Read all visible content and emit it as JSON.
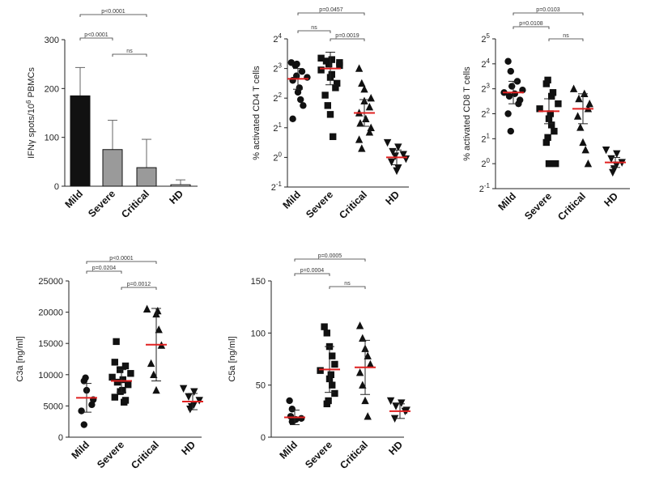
{
  "chart_data": [
    {
      "type": "bar",
      "panel": "ifn",
      "ylabel_pre": "IFNγ spots/10",
      "ylabel_sup": "6",
      "ylabel_post": " PBMCs",
      "ylim": [
        0,
        300
      ],
      "yticks": [
        "0",
        "100",
        "200",
        "300"
      ],
      "categories": [
        "Mild",
        "Severe",
        "Critical",
        "HD"
      ],
      "values": [
        185,
        75,
        38,
        3
      ],
      "errors": [
        58,
        60,
        58,
        10
      ],
      "colors": [
        "#111111",
        "#9a9a9a",
        "#9a9a9a",
        "#ffffff"
      ],
      "comparisons": [
        {
          "from": 0,
          "to": 1,
          "label": "p<0.0001"
        },
        {
          "from": 1,
          "to": 2,
          "label": "ns"
        },
        {
          "from": 0,
          "to": 2,
          "label": "p<0.0001"
        }
      ]
    },
    {
      "type": "scatter",
      "panel": "cd4",
      "ylabel": "% activated CD4 T cells",
      "scale": "log2",
      "ylim_exp": [
        -1,
        4
      ],
      "ytick_exps": [
        "-1",
        "0",
        "1",
        "2",
        "3",
        "4"
      ],
      "categories": [
        "Mild",
        "Severe",
        "Critical",
        "HD"
      ],
      "markers": [
        "circle",
        "square",
        "triangle",
        "triangle-down"
      ],
      "means": [
        2.65,
        3.0,
        1.5,
        0.0
      ],
      "sds": [
        0.35,
        0.55,
        0.45,
        0.25
      ],
      "points": [
        [
          3.15,
          3.1,
          2.9,
          2.75,
          2.7,
          2.6,
          2.35,
          2.2,
          1.95,
          1.75,
          1.3,
          3.2
        ],
        [
          3.35,
          3.3,
          3.25,
          3.15,
          3.1,
          2.95,
          2.8,
          2.7,
          2.5,
          2.35,
          2.1,
          1.75,
          1.45,
          0.7,
          3.2
        ],
        [
          3.0,
          2.5,
          2.3,
          2.0,
          1.7,
          1.5,
          1.3,
          1.15,
          1.0,
          0.85,
          0.6,
          0.3,
          1.9
        ],
        [
          0.5,
          0.35,
          0.2,
          0.05,
          -0.05,
          -0.15,
          -0.35,
          -0.45,
          0.1
        ]
      ],
      "comparisons": [
        {
          "from": 0,
          "to": 1,
          "label": "ns"
        },
        {
          "from": 1,
          "to": 2,
          "label": "p=0.0019"
        },
        {
          "from": 0,
          "to": 2,
          "label": "p=0.0457"
        }
      ]
    },
    {
      "type": "scatter",
      "panel": "cd8",
      "ylabel": "% activated CD8 T cells",
      "scale": "log2",
      "ylim_exp": [
        -1,
        5
      ],
      "ytick_exps": [
        "-1",
        "0",
        "1",
        "2",
        "3",
        "4",
        "5"
      ],
      "categories": [
        "Mild",
        "Severe",
        "Critical",
        "HD"
      ],
      "markers": [
        "circle",
        "square",
        "triangle",
        "triangle-down"
      ],
      "means": [
        2.85,
        2.1,
        2.2,
        0.05
      ],
      "sds": [
        0.45,
        0.5,
        0.6,
        0.2
      ],
      "points": [
        [
          4.1,
          3.7,
          3.3,
          3.1,
          2.95,
          2.85,
          2.8,
          2.7,
          2.55,
          2.4,
          2.0,
          1.3
        ],
        [
          3.35,
          3.2,
          2.85,
          2.7,
          2.4,
          2.2,
          2.0,
          1.8,
          1.55,
          1.3,
          1.05,
          0.85,
          0.0,
          0.0
        ],
        [
          3.0,
          2.8,
          2.6,
          2.4,
          2.2,
          1.9,
          1.45,
          0.85,
          0.55,
          0.0
        ],
        [
          0.55,
          0.4,
          0.2,
          0.05,
          -0.05,
          -0.2,
          -0.35
        ]
      ],
      "comparisons": [
        {
          "from": 0,
          "to": 1,
          "label": "p=0.0108"
        },
        {
          "from": 1,
          "to": 2,
          "label": "ns"
        },
        {
          "from": 0,
          "to": 2,
          "label": "p=0.0103"
        }
      ]
    },
    {
      "type": "scatter",
      "panel": "c3a",
      "ylabel": "C3a [ng/ml]",
      "scale": "linear",
      "ylim": [
        0,
        25000
      ],
      "yticks": [
        "0",
        "5000",
        "10000",
        "15000",
        "20000",
        "25000"
      ],
      "categories": [
        "Mild",
        "Severe",
        "Critical",
        "HD"
      ],
      "markers": [
        "circle",
        "square",
        "triangle",
        "triangle-down"
      ],
      "means": [
        6300,
        9000,
        14800,
        5700
      ],
      "sds": [
        2300,
        1800,
        5800,
        1300
      ],
      "points": [
        [
          9500,
          9000,
          7500,
          6000,
          5200,
          4200,
          2000
        ],
        [
          15300,
          12000,
          11400,
          10800,
          10200,
          9600,
          9200,
          8800,
          8400,
          7500,
          7300,
          6400,
          5900,
          5600
        ],
        [
          20500,
          20200,
          19700,
          17200,
          14700,
          11800,
          10000,
          7500
        ],
        [
          7800,
          7300,
          6500,
          5900,
          5200,
          4900,
          4500
        ]
      ],
      "comparisons": [
        {
          "from": 0,
          "to": 1,
          "label": "p=0.0204"
        },
        {
          "from": 1,
          "to": 2,
          "label": "p=0.0012"
        },
        {
          "from": 0,
          "to": 2,
          "label": "p<0.0001"
        }
      ]
    },
    {
      "type": "scatter",
      "panel": "c5a",
      "ylabel": "C5a [ng/ml]",
      "scale": "linear",
      "ylim": [
        0,
        150
      ],
      "yticks": [
        "0",
        "50",
        "100",
        "150"
      ],
      "categories": [
        "Mild",
        "Severe",
        "Critical",
        "HD"
      ],
      "markers": [
        "circle",
        "square",
        "triangle",
        "triangle-down"
      ],
      "means": [
        19,
        65,
        67,
        25
      ],
      "sds": [
        7,
        22,
        26,
        7
      ],
      "points": [
        [
          35,
          27,
          20,
          18,
          17,
          16,
          15
        ],
        [
          106,
          100,
          87,
          78,
          70,
          64,
          60,
          56,
          50,
          42,
          35,
          32
        ],
        [
          107,
          95,
          85,
          78,
          70,
          62,
          50,
          35,
          20
        ],
        [
          35,
          33,
          30,
          26,
          25,
          18
        ]
      ],
      "comparisons": [
        {
          "from": 0,
          "to": 1,
          "label": "p=0.0004"
        },
        {
          "from": 1,
          "to": 2,
          "label": "ns"
        },
        {
          "from": 0,
          "to": 2,
          "label": "p=0.0005"
        }
      ]
    }
  ]
}
